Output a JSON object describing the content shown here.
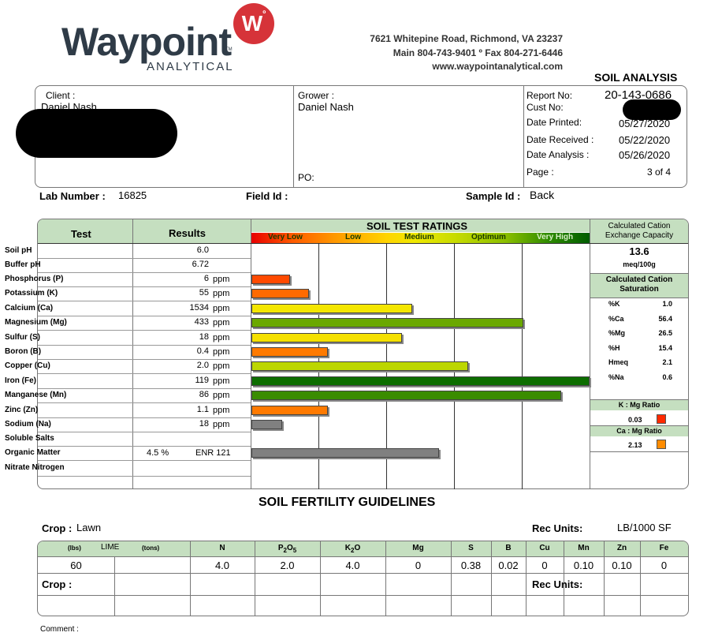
{
  "company": {
    "name": "Waypoint",
    "sub": "ANALYTICAL",
    "mark": "W",
    "tm": "TM",
    "address": "7621 Whitepine Road, Richmond, VA 23237",
    "phone": "Main 804-743-9401 º Fax 804-271-6446",
    "website": "www.waypointanalytical.com"
  },
  "report_title": "SOIL ANALYSIS",
  "client": {
    "label": "Client :",
    "name": "Daniel Nash"
  },
  "grower": {
    "label": "Grower :",
    "name": "Daniel Nash",
    "po_label": "PO:"
  },
  "report": {
    "report_no_label": "Report No:",
    "report_no": "20-143-0686",
    "cust_no_label": "Cust No:",
    "date_printed_label": "Date Printed:",
    "date_printed": "05/27/2020",
    "date_received_label": "Date Received :",
    "date_received": "05/22/2020",
    "date_analysis_label": "Date Analysis :",
    "date_analysis": "05/26/2020",
    "page_label": "Page :",
    "page": "3 of 4"
  },
  "ids": {
    "lab_number_label": "Lab Number :",
    "lab_number": "16825",
    "field_id_label": "Field Id :",
    "sample_id_label": "Sample Id :",
    "sample_id": "Back"
  },
  "ratings": {
    "col_test": "Test",
    "col_results": "Results",
    "title": "SOIL TEST RATINGS",
    "bands": [
      "Very Low",
      "Low",
      "Medium",
      "Optimum",
      "Very High"
    ],
    "colors": {
      "very_low": "#ff3b00",
      "low": "#ff7f00",
      "medium": "#f2e600",
      "optimum": "#b8d600",
      "high": "#5aa000",
      "very_high": "#0b6b00",
      "gray": "#808080"
    },
    "rows": [
      {
        "test": "Soil pH",
        "value": "6.0",
        "unit": ""
      },
      {
        "test": "Buffer pH",
        "value": "6.72",
        "unit": ""
      },
      {
        "test": "Phosphorus (P)",
        "value": "6",
        "unit": "ppm",
        "bar_pct": 0.115,
        "color": "#ff4a00"
      },
      {
        "test": "Potassium (K)",
        "value": "55",
        "unit": "ppm",
        "bar_pct": 0.17,
        "color": "#ff6a00"
      },
      {
        "test": "Calcium (Ca)",
        "value": "1534",
        "unit": "ppm",
        "bar_pct": 0.475,
        "color": "#f4e600"
      },
      {
        "test": "Magnesium (Mg)",
        "value": "433",
        "unit": "ppm",
        "bar_pct": 0.805,
        "color": "#6aa800"
      },
      {
        "test": "Sulfur (S)",
        "value": "18",
        "unit": "ppm",
        "bar_pct": 0.445,
        "color": "#f4e000"
      },
      {
        "test": "Boron (B)",
        "value": "0.4",
        "unit": "ppm",
        "bar_pct": 0.225,
        "color": "#ff7a00"
      },
      {
        "test": "Copper (Cu)",
        "value": "2.0",
        "unit": "ppm",
        "bar_pct": 0.64,
        "color": "#bcd600"
      },
      {
        "test": "Iron (Fe)",
        "value": "119",
        "unit": "ppm",
        "bar_pct": 1.0,
        "color": "#0d6e00"
      },
      {
        "test": "Manganese (Mn)",
        "value": "86",
        "unit": "ppm",
        "bar_pct": 0.915,
        "color": "#3a8c00"
      },
      {
        "test": "Zinc (Zn)",
        "value": "1.1",
        "unit": "ppm",
        "bar_pct": 0.225,
        "color": "#ff7a00"
      },
      {
        "test": "Sodium (Na)",
        "value": "18",
        "unit": "ppm",
        "bar_pct": 0.09,
        "color": "#808080"
      },
      {
        "test": "Soluble Salts",
        "value": "",
        "unit": ""
      },
      {
        "test": "Organic Matter",
        "value": "4.5 %",
        "unit": "ENR 121",
        "bar_pct": 0.555,
        "color": "#808080"
      },
      {
        "test": "Nitrate Nitrogen",
        "value": "",
        "unit": ""
      }
    ]
  },
  "cec": {
    "title": "Calculated Cation Exchange Capacity",
    "value": "13.6",
    "unit": "meq/100g",
    "sat_title": "Calculated Cation Saturation",
    "sat": [
      {
        "label": "%K",
        "value": "1.0"
      },
      {
        "label": "%Ca",
        "value": "56.4"
      },
      {
        "label": "%Mg",
        "value": "26.5"
      },
      {
        "label": "%H",
        "value": "15.4"
      },
      {
        "label": "Hmeq",
        "value": "2.1"
      },
      {
        "label": "%Na",
        "value": "0.6"
      }
    ],
    "k_mg_label": "K : Mg Ratio",
    "k_mg": "0.03",
    "k_mg_color": "#ff2a00",
    "ca_mg_label": "Ca : Mg Ratio",
    "ca_mg": "2.13",
    "ca_mg_color": "#ff8c00"
  },
  "guidelines": {
    "title": "SOIL FERTILITY GUIDELINES",
    "crop_label": "Crop :",
    "crop": "Lawn",
    "rec_units_label": "Rec Units:",
    "rec_units": "LB/1000 SF",
    "lime_lbs": "(lbs)",
    "lime": "LIME",
    "lime_tons": "(tons)",
    "headers": [
      "N",
      "P",
      "2",
      "O",
      "5",
      "K",
      "2",
      "O",
      "Mg",
      "S",
      "B",
      "Cu",
      "Mn",
      "Zn",
      "Fe"
    ],
    "values": {
      "lime_lbs": "60",
      "lime_tons": "",
      "N": "4.0",
      "P2O5": "2.0",
      "K2O": "4.0",
      "Mg": "0",
      "S": "0.38",
      "B": "0.02",
      "Cu": "0",
      "Mn": "0.10",
      "Zn": "0.10",
      "Fe": "0"
    },
    "crop2_label": "Crop :",
    "rec_units2_label": "Rec Units:"
  },
  "comment_label": "Comment :"
}
